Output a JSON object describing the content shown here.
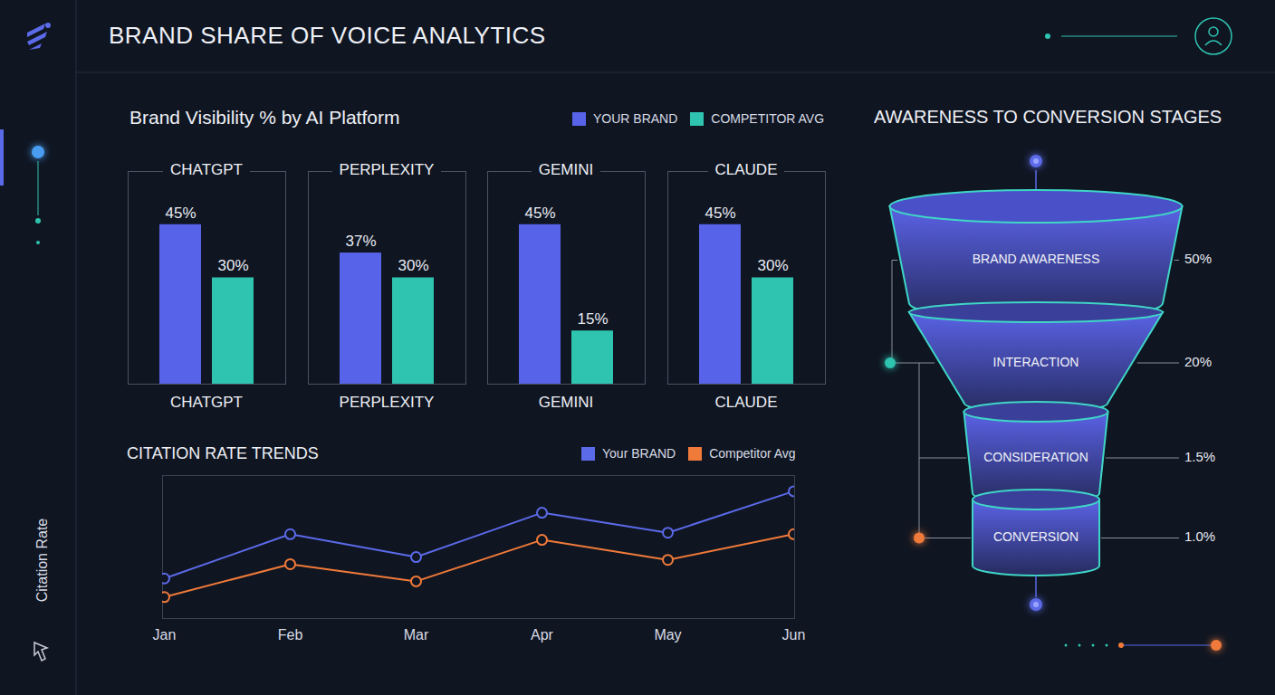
{
  "header": {
    "title": "BRAND SHARE OF VOICE ANALYTICS"
  },
  "chart_data": [
    {
      "type": "bar",
      "title": "Brand Visibility % by AI Platform",
      "categories": [
        "CHATGPT",
        "PERPLEXITY",
        "GEMINI",
        "CLAUDE"
      ],
      "series": [
        {
          "name": "YOUR BRAND",
          "color": "#5763e8",
          "values": [
            45,
            37,
            45,
            45
          ],
          "value_labels": [
            "45%",
            "37%",
            "45%",
            "45%"
          ]
        },
        {
          "name": "COMPETITOR AVG",
          "color": "#2ec4b0",
          "values": [
            30,
            30,
            15,
            30
          ],
          "value_labels": [
            "30%",
            "30%",
            "15%",
            "30%"
          ]
        }
      ],
      "ylim": [
        0,
        60
      ],
      "yticks": [],
      "tick_labels": false,
      "data_labels": true,
      "legend": "top-right",
      "grid": false
    },
    {
      "type": "line",
      "title": "CITATION RATE TRENDS",
      "y_label": "Citation Rate",
      "categories": [
        "Jan",
        "Feb",
        "Mar",
        "Apr",
        "May",
        "Jun"
      ],
      "series": [
        {
          "name": "Your BRAND",
          "color": "#5b6ae8",
          "values": [
            2.8,
            5.9,
            4.3,
            7.4,
            6.0,
            8.9
          ]
        },
        {
          "name": "Competitor Avg",
          "color": "#f07a3a",
          "values": [
            1.5,
            3.8,
            2.6,
            5.5,
            4.1,
            5.9
          ]
        }
      ],
      "ylim": [
        0,
        10
      ],
      "yticks": [],
      "tick_labels": "x",
      "marker": "circle",
      "legend": "top-right",
      "grid": false
    },
    {
      "type": "funnel",
      "title": "AWARENESS TO CONVERSION STAGES",
      "categories": [
        "BRAND AWARENESS",
        "INTERACTION",
        "CONSIDERATION",
        "CONVERSION"
      ],
      "values": [
        50,
        20,
        1.5,
        1.0
      ],
      "value_labels": [
        "50%",
        "20%",
        "1.5%",
        "1.0%"
      ],
      "log": true,
      "data_labels": true
    }
  ]
}
